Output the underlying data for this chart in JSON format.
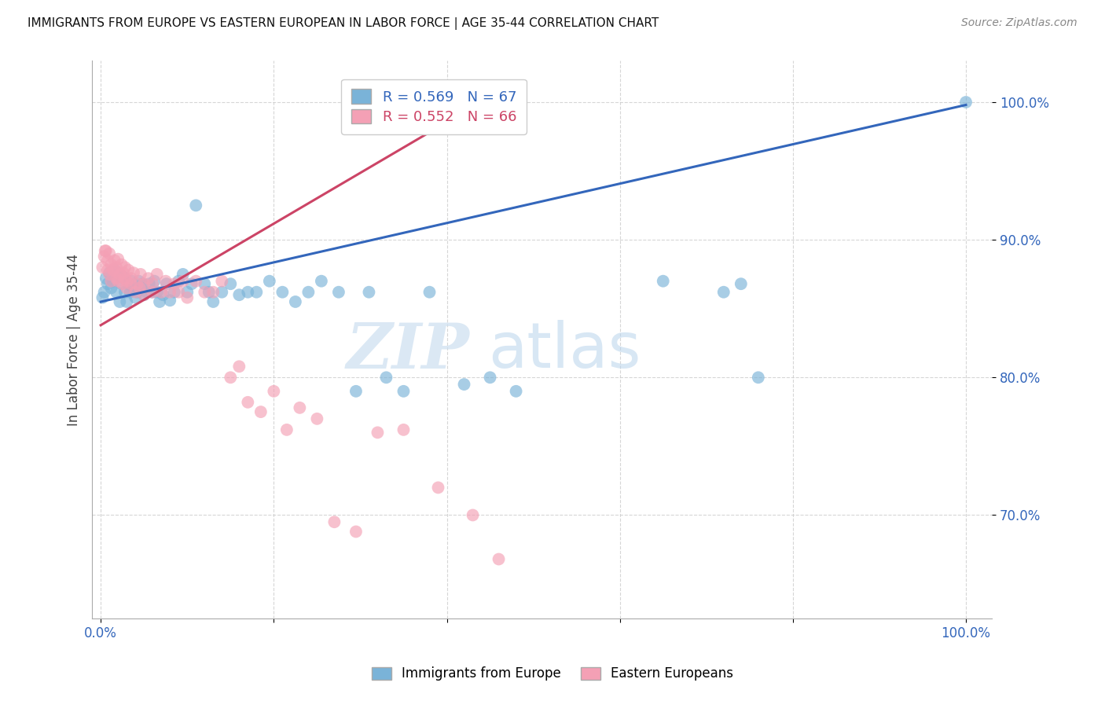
{
  "title": "IMMIGRANTS FROM EUROPE VS EASTERN EUROPEAN IN LABOR FORCE | AGE 35-44 CORRELATION CHART",
  "source": "Source: ZipAtlas.com",
  "ylabel": "In Labor Force | Age 35-44",
  "xlim": [
    -0.01,
    1.03
  ],
  "ylim": [
    0.625,
    1.03
  ],
  "xtick_positions": [
    0.0,
    0.2,
    0.4,
    0.6,
    0.8,
    1.0
  ],
  "xticklabels": [
    "0.0%",
    "",
    "",
    "",
    "",
    "100.0%"
  ],
  "ytick_positions": [
    0.7,
    0.8,
    0.9,
    1.0
  ],
  "ytick_labels": [
    "70.0%",
    "80.0%",
    "90.0%",
    "100.0%"
  ],
  "legend1_label": "Immigrants from Europe",
  "legend2_label": "Eastern Europeans",
  "R_blue": 0.569,
  "N_blue": 67,
  "R_pink": 0.552,
  "N_pink": 66,
  "blue_color": "#7ab3d8",
  "pink_color": "#f4a0b5",
  "trend_blue": "#3366bb",
  "trend_pink": "#cc4466",
  "watermark_zip": "ZIP",
  "watermark_atlas": "atlas",
  "blue_x": [
    0.002,
    0.004,
    0.006,
    0.008,
    0.01,
    0.012,
    0.014,
    0.016,
    0.018,
    0.02,
    0.022,
    0.024,
    0.026,
    0.028,
    0.03,
    0.032,
    0.034,
    0.036,
    0.038,
    0.04,
    0.042,
    0.044,
    0.046,
    0.048,
    0.05,
    0.053,
    0.056,
    0.059,
    0.062,
    0.065,
    0.068,
    0.072,
    0.076,
    0.08,
    0.085,
    0.09,
    0.095,
    0.1,
    0.105,
    0.11,
    0.12,
    0.125,
    0.13,
    0.14,
    0.15,
    0.16,
    0.17,
    0.18,
    0.195,
    0.21,
    0.225,
    0.24,
    0.255,
    0.275,
    0.295,
    0.31,
    0.33,
    0.35,
    0.38,
    0.42,
    0.45,
    0.48,
    0.65,
    0.72,
    0.74,
    0.76,
    1.0
  ],
  "blue_y": [
    0.858,
    0.862,
    0.872,
    0.868,
    0.876,
    0.865,
    0.87,
    0.878,
    0.862,
    0.874,
    0.855,
    0.868,
    0.873,
    0.862,
    0.855,
    0.868,
    0.862,
    0.87,
    0.865,
    0.858,
    0.862,
    0.87,
    0.865,
    0.868,
    0.86,
    0.862,
    0.868,
    0.862,
    0.87,
    0.862,
    0.855,
    0.86,
    0.868,
    0.856,
    0.862,
    0.87,
    0.875,
    0.862,
    0.868,
    0.925,
    0.868,
    0.862,
    0.855,
    0.862,
    0.868,
    0.86,
    0.862,
    0.862,
    0.87,
    0.862,
    0.855,
    0.862,
    0.87,
    0.862,
    0.79,
    0.862,
    0.8,
    0.79,
    0.862,
    0.795,
    0.8,
    0.79,
    0.87,
    0.862,
    0.868,
    0.8,
    1.0
  ],
  "pink_x": [
    0.002,
    0.004,
    0.006,
    0.008,
    0.01,
    0.012,
    0.014,
    0.016,
    0.018,
    0.02,
    0.022,
    0.024,
    0.026,
    0.028,
    0.03,
    0.032,
    0.035,
    0.038,
    0.042,
    0.046,
    0.05,
    0.055,
    0.06,
    0.065,
    0.07,
    0.075,
    0.08,
    0.085,
    0.09,
    0.095,
    0.1,
    0.11,
    0.12,
    0.13,
    0.14,
    0.15,
    0.16,
    0.17,
    0.185,
    0.2,
    0.215,
    0.23,
    0.25,
    0.27,
    0.295,
    0.32,
    0.35,
    0.39,
    0.43,
    0.46,
    0.005,
    0.008,
    0.01,
    0.012,
    0.015,
    0.018,
    0.02,
    0.022,
    0.025,
    0.028,
    0.03,
    0.035,
    0.04,
    0.045,
    0.05,
    0.06
  ],
  "pink_y": [
    0.88,
    0.888,
    0.892,
    0.885,
    0.89,
    0.882,
    0.878,
    0.885,
    0.88,
    0.886,
    0.875,
    0.882,
    0.876,
    0.88,
    0.87,
    0.878,
    0.872,
    0.876,
    0.868,
    0.875,
    0.868,
    0.872,
    0.868,
    0.875,
    0.862,
    0.87,
    0.862,
    0.868,
    0.862,
    0.87,
    0.858,
    0.87,
    0.862,
    0.862,
    0.87,
    0.8,
    0.808,
    0.782,
    0.775,
    0.79,
    0.762,
    0.778,
    0.77,
    0.695,
    0.688,
    0.76,
    0.762,
    0.72,
    0.7,
    0.668,
    0.892,
    0.878,
    0.875,
    0.87,
    0.878,
    0.872,
    0.87,
    0.875,
    0.868,
    0.872,
    0.865,
    0.868,
    0.862,
    0.865,
    0.86,
    0.862
  ]
}
